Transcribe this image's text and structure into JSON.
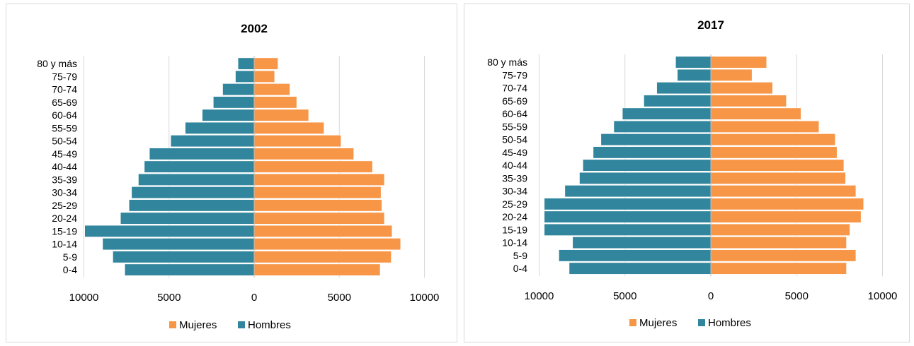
{
  "chart_data": [
    {
      "type": "bar",
      "orientation": "horizontal",
      "title": "2002",
      "categories": [
        "80 y más",
        "75-79",
        "70-74",
        "65-69",
        "60-64",
        "55-59",
        "50-54",
        "45-49",
        "40-44",
        "35-39",
        "30-34",
        "25-29",
        "20-24",
        "15-19",
        "10-14",
        "5-9",
        "0-4"
      ],
      "series": [
        {
          "name": "Mujeres",
          "color": "#f79646",
          "side": "right",
          "values": [
            1400,
            1200,
            2100,
            2500,
            3200,
            4100,
            5100,
            5850,
            6950,
            7650,
            7450,
            7500,
            7650,
            8100,
            8600,
            8050,
            7400
          ]
        },
        {
          "name": "Hombres",
          "color": "#31859c",
          "side": "left",
          "values": [
            950,
            1100,
            1850,
            2400,
            3050,
            4050,
            4900,
            6150,
            6450,
            6800,
            7200,
            7350,
            7850,
            9950,
            8900,
            8300,
            7600
          ]
        }
      ],
      "xlim": [
        -10000,
        10000
      ],
      "xticks": [
        "10000",
        "5000",
        "0",
        "5000",
        "10000"
      ],
      "grid": true,
      "legend": "bottom"
    },
    {
      "type": "bar",
      "orientation": "horizontal",
      "title": "2017",
      "categories": [
        "80 y más",
        "75-79",
        "70-74",
        "65-69",
        "60-64",
        "55-59",
        "50-54",
        "45-49",
        "40-44",
        "35-39",
        "30-34",
        "25-29",
        "20-24",
        "15-19",
        "10-14",
        "5-9",
        "0-4"
      ],
      "series": [
        {
          "name": "Mujeres",
          "color": "#f79646",
          "side": "right",
          "values": [
            3250,
            2400,
            3600,
            4400,
            5250,
            6300,
            7250,
            7350,
            7750,
            7850,
            8450,
            8900,
            8750,
            8100,
            7900,
            8450,
            7900
          ]
        },
        {
          "name": "Hombres",
          "color": "#31859c",
          "side": "left",
          "values": [
            2050,
            1950,
            3150,
            3900,
            5150,
            5650,
            6400,
            6850,
            7450,
            7650,
            8500,
            9700,
            9700,
            9700,
            8050,
            8850,
            8250
          ]
        }
      ],
      "xlim": [
        -10000,
        10000
      ],
      "xticks": [
        "10000",
        "5000",
        "0",
        "5000",
        "10000"
      ],
      "grid": true,
      "legend": "bottom"
    }
  ]
}
